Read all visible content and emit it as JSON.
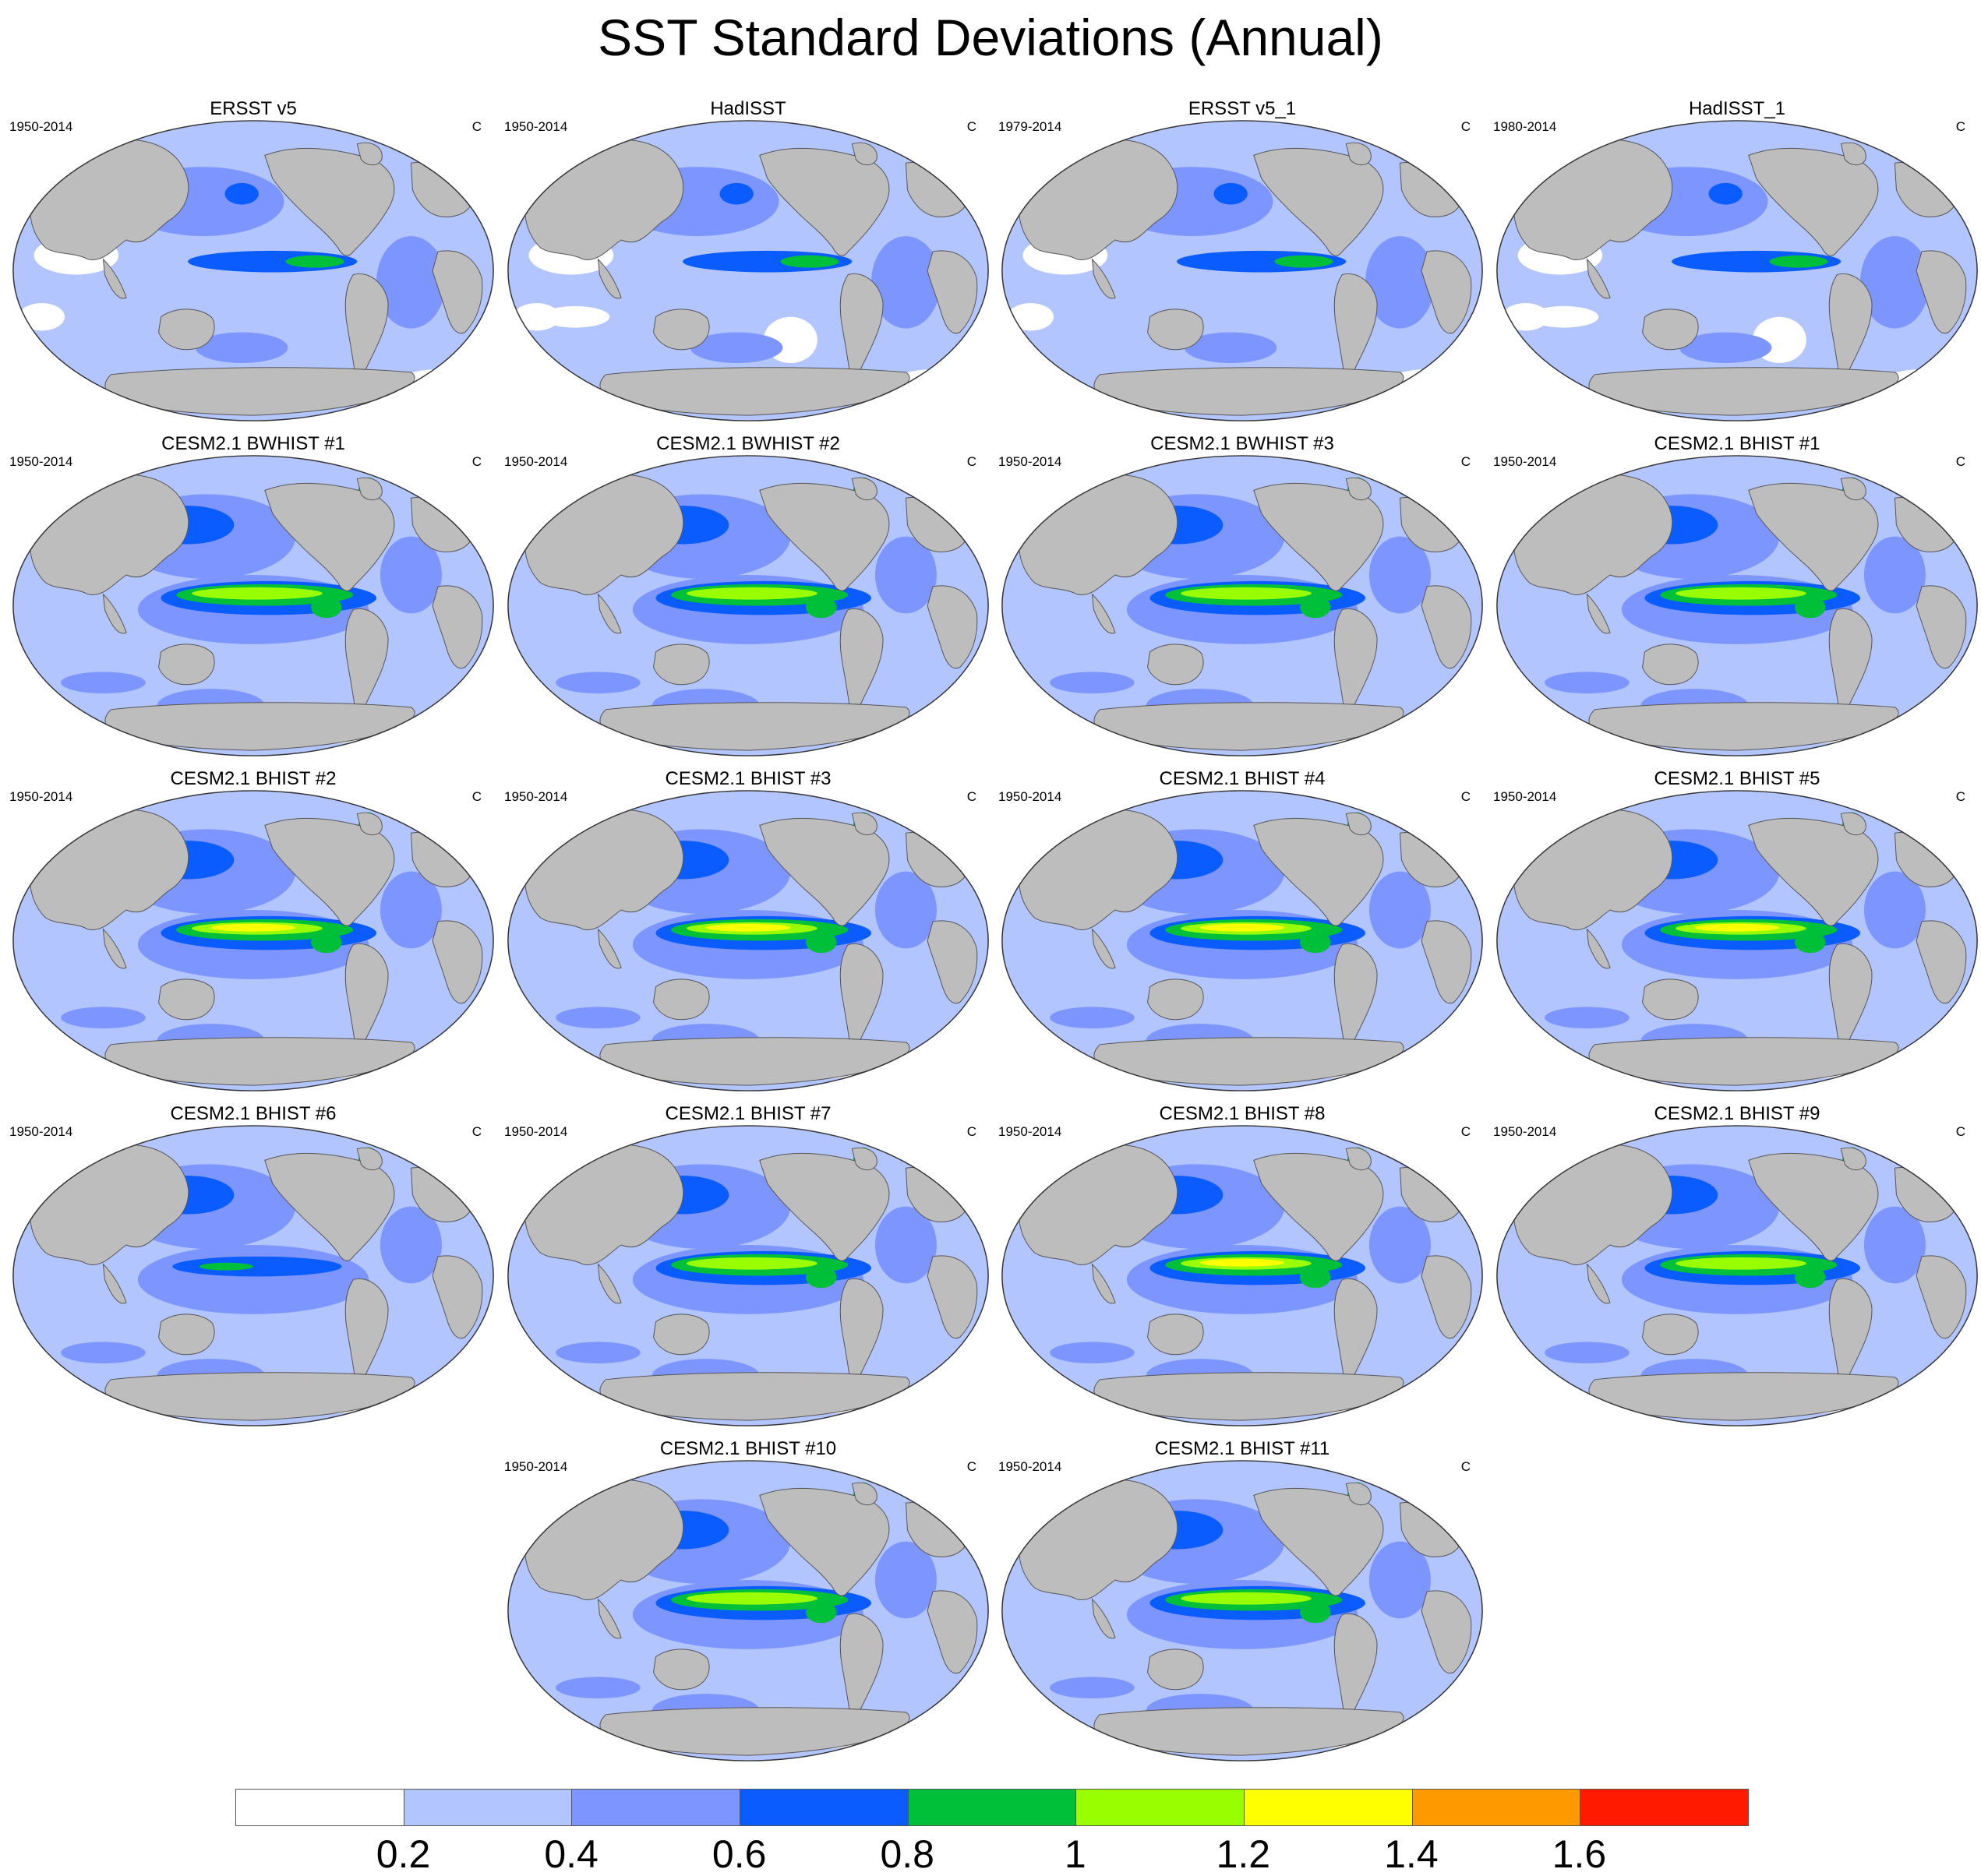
{
  "title": "SST Standard Deviations (Annual)",
  "units_label": "C",
  "colors": {
    "land": "#bdbdbd",
    "levels": [
      "#ffffff",
      "#b3c5ff",
      "#7d95ff",
      "#0a5cff",
      "#00c03a",
      "#99ff00",
      "#ffff00",
      "#ff9900",
      "#ff1a00"
    ]
  },
  "panels": [
    {
      "title": "ERSST v5",
      "period": "1950-2014",
      "units": "C",
      "pattern": "obs"
    },
    {
      "title": "HadISST",
      "period": "1950-2014",
      "units": "C",
      "pattern": "obs2"
    },
    {
      "title": "ERSST v5_1",
      "period": "1979-2014",
      "units": "C",
      "pattern": "obs"
    },
    {
      "title": "HadISST_1",
      "period": "1980-2014",
      "units": "C",
      "pattern": "obs2"
    },
    {
      "title": "CESM2.1 BWHIST #1",
      "period": "1950-2014",
      "units": "C",
      "pattern": "model"
    },
    {
      "title": "CESM2.1 BWHIST #2",
      "period": "1950-2014",
      "units": "C",
      "pattern": "model"
    },
    {
      "title": "CESM2.1 BWHIST #3",
      "period": "1950-2014",
      "units": "C",
      "pattern": "model"
    },
    {
      "title": "CESM2.1 BHIST #1",
      "period": "1950-2014",
      "units": "C",
      "pattern": "model"
    },
    {
      "title": "CESM2.1 BHIST #2",
      "period": "1950-2014",
      "units": "C",
      "pattern": "strong"
    },
    {
      "title": "CESM2.1 BHIST #3",
      "period": "1950-2014",
      "units": "C",
      "pattern": "strong"
    },
    {
      "title": "CESM2.1 BHIST #4",
      "period": "1950-2014",
      "units": "C",
      "pattern": "strong"
    },
    {
      "title": "CESM2.1 BHIST #5",
      "period": "1950-2014",
      "units": "C",
      "pattern": "strong"
    },
    {
      "title": "CESM2.1 BHIST #6",
      "period": "1950-2014",
      "units": "C",
      "pattern": "weak"
    },
    {
      "title": "CESM2.1 BHIST #7",
      "period": "1950-2014",
      "units": "C",
      "pattern": "model"
    },
    {
      "title": "CESM2.1 BHIST #8",
      "period": "1950-2014",
      "units": "C",
      "pattern": "strong"
    },
    {
      "title": "CESM2.1 BHIST #9",
      "period": "1950-2014",
      "units": "C",
      "pattern": "model"
    },
    {
      "title": "CESM2.1 BHIST #10",
      "period": "1950-2014",
      "units": "C",
      "pattern": "model"
    },
    {
      "title": "CESM2.1 BHIST #11",
      "period": "1950-2014",
      "units": "C",
      "pattern": "model"
    }
  ],
  "colorbar": {
    "labels": [
      "0.2",
      "0.4",
      "0.6",
      "0.8",
      "1",
      "1.2",
      "1.4",
      "1.6"
    ]
  }
}
